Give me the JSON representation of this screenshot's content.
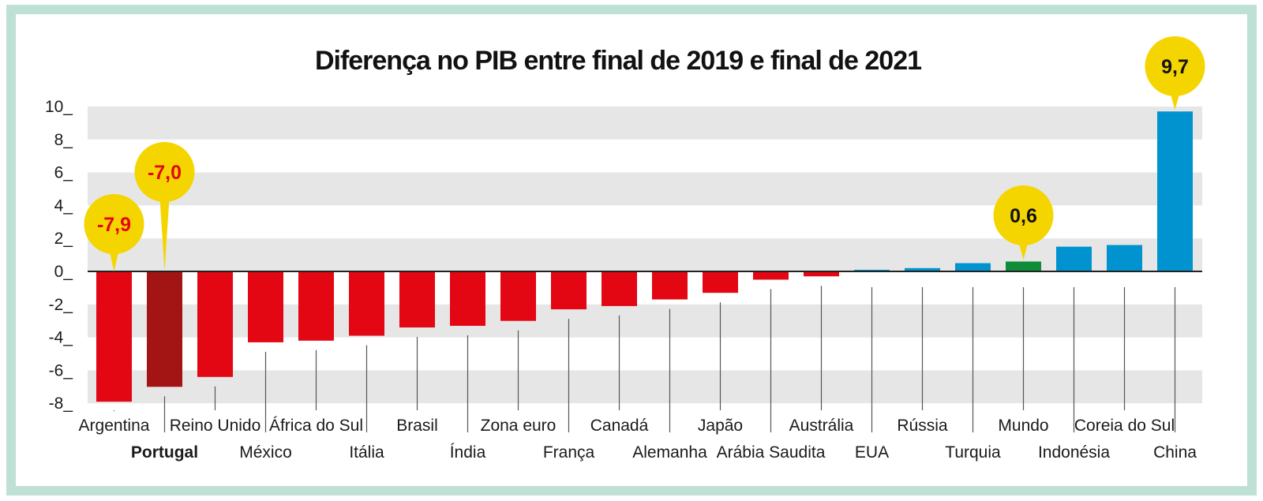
{
  "colors": {
    "negative": "#e30613",
    "highlight_negative": "#a31515",
    "positive": "#0093d0",
    "world": "#0e8c3a",
    "bubble": "#f5d500",
    "bubble_text_negative": "#e30613",
    "bubble_text_positive": "#111111",
    "band": "#e6e6e6",
    "frame": "#bfe0d4"
  },
  "chart_data": {
    "type": "bar",
    "title": "Diferença no PIB entre final de 2019 e final de 2021",
    "xlabel": "",
    "ylabel": "",
    "ylim": [
      -8,
      10
    ],
    "yticks": [
      10,
      8,
      6,
      4,
      2,
      0,
      -2,
      -4,
      -6,
      -8
    ],
    "ytick_labels": [
      "10_",
      "8_",
      "6_",
      "4_",
      "2_",
      "0_",
      "-2_",
      "-4_",
      "-6_",
      "-8_"
    ],
    "grid": "alternating horizontal bands",
    "legend": "none",
    "categories": [
      "Argentina",
      "Portugal",
      "Reino Unido",
      "México",
      "África do Sul",
      "Itália",
      "Brasil",
      "Índia",
      "Zona euro",
      "França",
      "Canadá",
      "Alemanha",
      "Japão",
      "Arábia Saudita",
      "Austrália",
      "EUA",
      "Rússia",
      "Turquia",
      "Mundo",
      "Indonésia",
      "Coreia do Sul",
      "China"
    ],
    "values": [
      -7.9,
      -7.0,
      -6.4,
      -4.3,
      -4.2,
      -3.9,
      -3.4,
      -3.3,
      -3.0,
      -2.3,
      -2.1,
      -1.7,
      -1.3,
      -0.5,
      -0.3,
      0.1,
      0.2,
      0.5,
      0.6,
      1.5,
      1.6,
      9.7
    ],
    "highlighted": [
      "Portugal"
    ],
    "annotations": [
      {
        "category": "Argentina",
        "label": "-7,9"
      },
      {
        "category": "Portugal",
        "label": "-7,0"
      },
      {
        "category": "Mundo",
        "label": "0,6"
      },
      {
        "category": "China",
        "label": "9,7"
      }
    ]
  }
}
